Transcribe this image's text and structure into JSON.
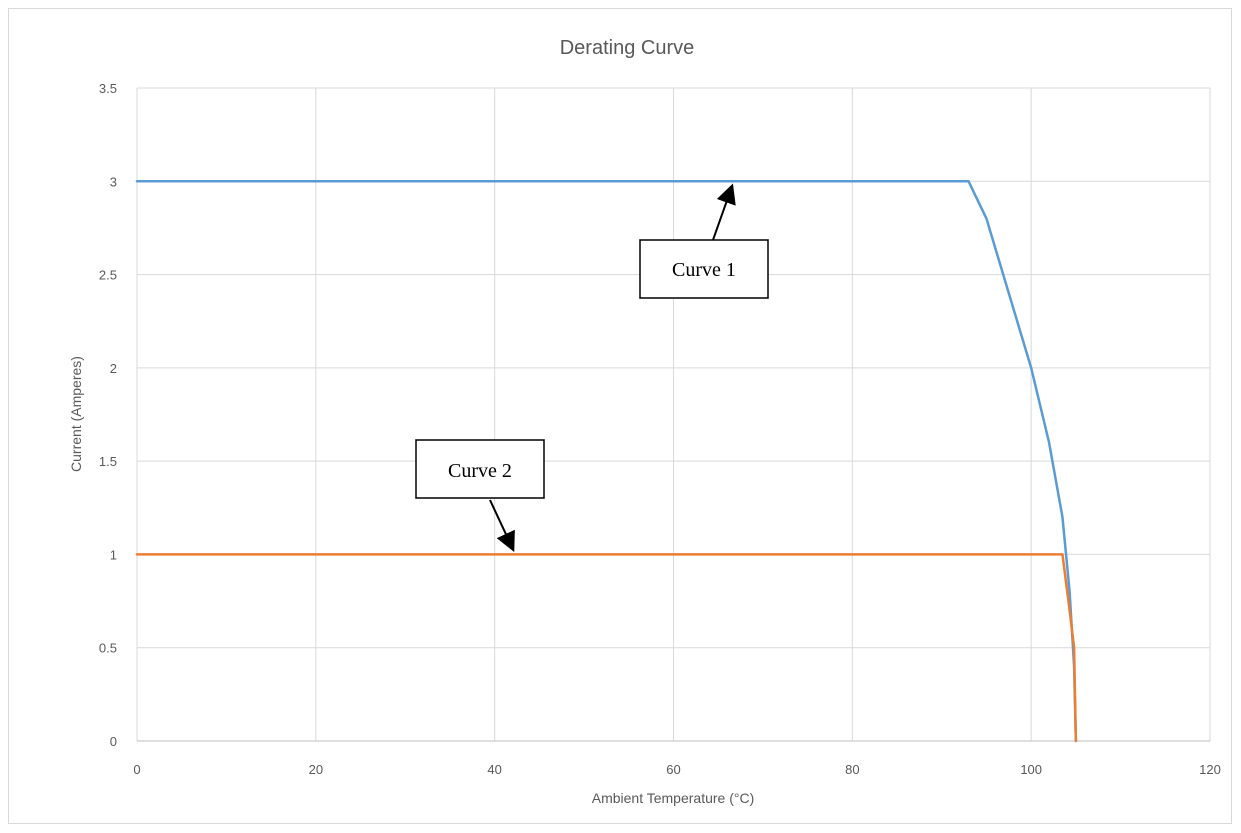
{
  "chart_data": {
    "type": "line",
    "title": "Derating Curve",
    "xlabel": "Ambient Temperature (°C)",
    "ylabel": "Current (Amperes)",
    "xlim": [
      0,
      120
    ],
    "ylim": [
      0,
      3.5
    ],
    "xticks": [
      "0",
      "20",
      "40",
      "60",
      "80",
      "100",
      "120"
    ],
    "yticks": [
      "0",
      "0.5",
      "1",
      "1.5",
      "2",
      "2.5",
      "3",
      "3.5"
    ],
    "grid": true,
    "series": [
      {
        "color": "#5b9bd5",
        "points": [
          [
            0,
            3
          ],
          [
            93,
            3
          ],
          [
            95,
            2.8
          ],
          [
            97.5,
            2.4
          ],
          [
            100,
            2.0
          ],
          [
            102,
            1.6
          ],
          [
            103.5,
            1.2
          ],
          [
            104.3,
            0.8
          ],
          [
            104.8,
            0.4
          ],
          [
            105,
            0
          ]
        ]
      },
      {
        "color": "#ed7d31",
        "points": [
          [
            0,
            1
          ],
          [
            103.5,
            1
          ],
          [
            104.3,
            0.7
          ],
          [
            104.8,
            0.5
          ],
          [
            105,
            0
          ]
        ]
      }
    ],
    "annotations": [
      {
        "text": "Curve 1",
        "arrow_to": [
          66.5,
          3
        ]
      },
      {
        "text": "Curve 2",
        "arrow_to": [
          42,
          1
        ]
      }
    ]
  }
}
